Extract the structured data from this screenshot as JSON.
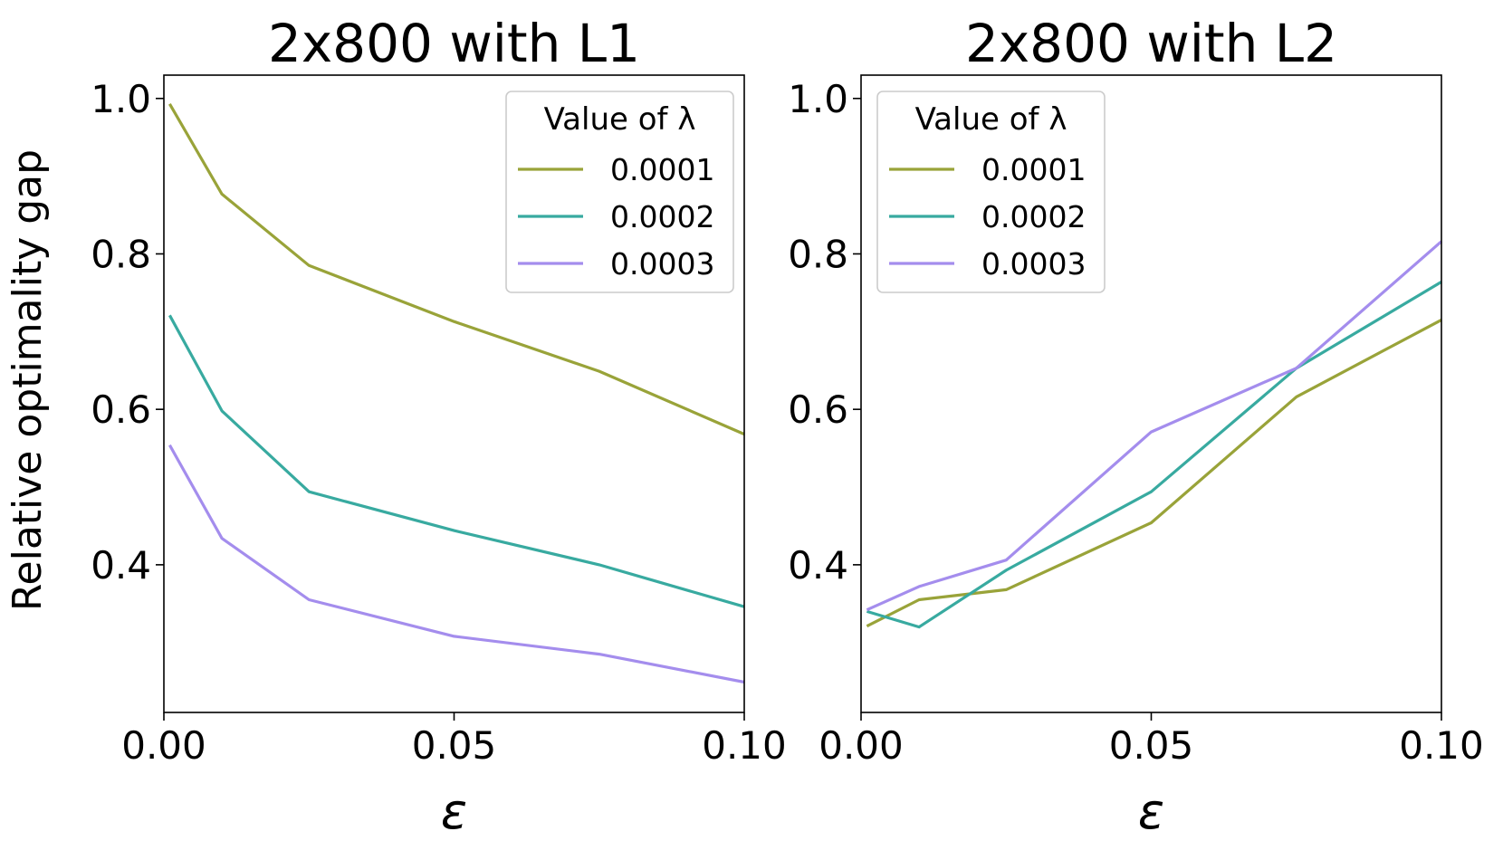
{
  "figure": {
    "ylabel": "Relative optimality gap"
  },
  "chart_data": [
    {
      "type": "line",
      "title": "2x800 with L1",
      "xlabel": "ε",
      "ylabel": "Relative optimality gap",
      "xlim": [
        0.0,
        0.1
      ],
      "ylim": [
        0.21,
        1.03
      ],
      "xticks": [
        0.0,
        0.05,
        0.1
      ],
      "xtick_labels": [
        "0.00",
        "0.05",
        "0.10"
      ],
      "yticks": [
        0.4,
        0.6,
        0.8,
        1.0
      ],
      "ytick_labels": [
        "0.4",
        "0.6",
        "0.8",
        "1.0"
      ],
      "legend": {
        "title": "Value of λ",
        "position": "upper right"
      },
      "x": [
        0.001,
        0.01,
        0.025,
        0.05,
        0.075,
        0.1
      ],
      "series": [
        {
          "name": "0.0001",
          "color": "#99a339",
          "values": [
            0.993,
            0.877,
            0.785,
            0.713,
            0.649,
            0.568
          ]
        },
        {
          "name": "0.0002",
          "color": "#38aaa0",
          "values": [
            0.721,
            0.598,
            0.494,
            0.444,
            0.4,
            0.346
          ]
        },
        {
          "name": "0.0003",
          "color": "#a48ded",
          "values": [
            0.554,
            0.434,
            0.355,
            0.308,
            0.285,
            0.249
          ]
        }
      ]
    },
    {
      "type": "line",
      "title": "2x800 with L2",
      "xlabel": "ε",
      "ylabel": "",
      "xlim": [
        0.0,
        0.1
      ],
      "ylim": [
        0.21,
        1.03
      ],
      "xticks": [
        0.0,
        0.05,
        0.1
      ],
      "xtick_labels": [
        "0.00",
        "0.05",
        "0.10"
      ],
      "yticks": [
        0.4,
        0.6,
        0.8,
        1.0
      ],
      "ytick_labels": [
        "0.4",
        "0.6",
        "0.8",
        "1.0"
      ],
      "legend": {
        "title": "Value of λ",
        "position": "upper left"
      },
      "x": [
        0.001,
        0.01,
        0.025,
        0.05,
        0.075,
        0.1
      ],
      "series": [
        {
          "name": "0.0001",
          "color": "#99a339",
          "values": [
            0.321,
            0.355,
            0.368,
            0.454,
            0.616,
            0.715
          ]
        },
        {
          "name": "0.0002",
          "color": "#38aaa0",
          "values": [
            0.34,
            0.32,
            0.393,
            0.494,
            0.653,
            0.764
          ]
        },
        {
          "name": "0.0003",
          "color": "#a48ded",
          "values": [
            0.342,
            0.372,
            0.406,
            0.571,
            0.653,
            0.816
          ]
        }
      ]
    }
  ]
}
